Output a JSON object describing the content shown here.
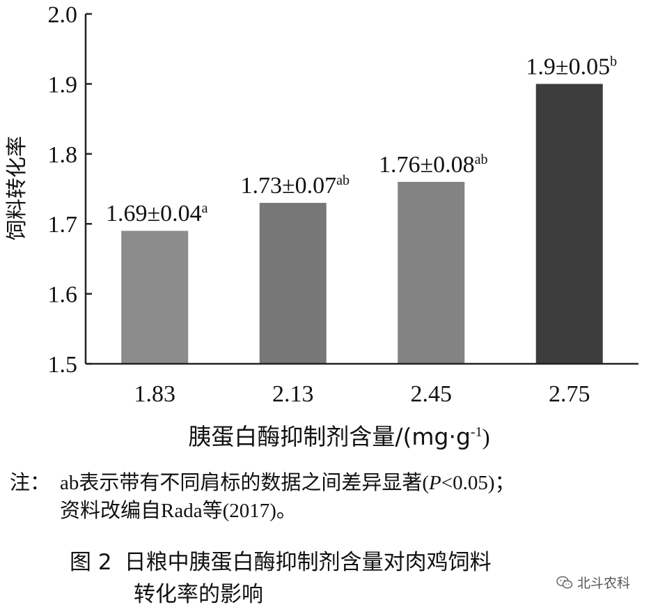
{
  "chart_data": {
    "type": "bar",
    "categories": [
      "1.83",
      "2.13",
      "2.45",
      "2.75"
    ],
    "values": [
      1.69,
      1.73,
      1.76,
      1.9
    ],
    "data_labels": [
      {
        "main": "1.69±0.04",
        "sup": "a"
      },
      {
        "main": "1.73±0.07",
        "sup": "ab"
      },
      {
        "main": "1.76±0.08",
        "sup": "ab"
      },
      {
        "main": "1.9±0.05",
        "sup": "b"
      }
    ],
    "bar_colors": [
      "#8c8c8c",
      "#777777",
      "#838383",
      "#3d3d3d"
    ],
    "ylabel": "饲料转化率",
    "xlabel": "胰蛋白酶抑制剂含量/(mg·g",
    "xlabel_sup": "-1",
    "xlabel_end": ")",
    "ylim": [
      1.5,
      2.0
    ],
    "yticks": [
      "1.5",
      "1.6",
      "1.7",
      "1.8",
      "1.9",
      "2.0"
    ],
    "grid": false
  },
  "note": {
    "label": "注：",
    "line1_a": "ab表示带有不同肩标的数据之间差异显著(",
    "line1_p": "P",
    "line1_b": "<0.05)；",
    "line2": "资料改编自Rada等(2017)。"
  },
  "caption": {
    "number": "图 2",
    "line1": "日粮中胰蛋白酶抑制剂含量对肉鸡饲料",
    "line2": "转化率的影响"
  },
  "watermark": {
    "text": "北斗农科",
    "icon": "wechat-icon"
  }
}
